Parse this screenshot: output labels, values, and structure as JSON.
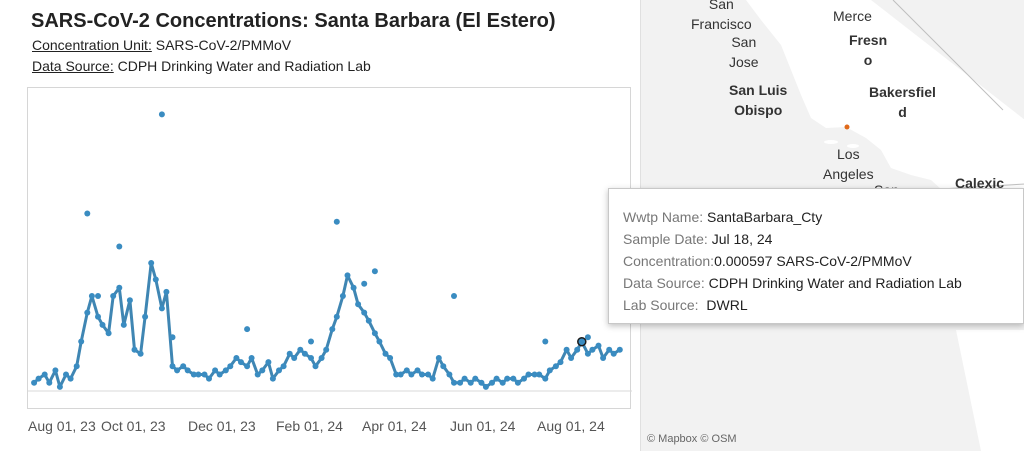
{
  "title": "SARS-CoV-2 Concentrations: Santa Barbara (El Estero)",
  "concentration_unit": {
    "label": "Concentration Unit:",
    "value": "SARS-CoV-2/PMMoV"
  },
  "data_source": {
    "label": "Data Source:",
    "value": "CDPH Drinking Water and Radiation Lab"
  },
  "chart_data": {
    "type": "scatter",
    "title": "",
    "xlabel": "",
    "ylabel": "",
    "x_ticks": [
      "Aug 01, 23",
      "Oct 01, 23",
      "Dec 01, 23",
      "Feb 01, 24",
      "Apr 01, 24",
      "Jun 01, 24",
      "Aug 01, 24"
    ],
    "x_range": [
      "2023-07-20",
      "2024-08-20"
    ],
    "y_range": [
      0,
      0.0035
    ],
    "grid": false,
    "line_color": "#3f86b3",
    "point_color": "#3a8cc1",
    "highlight": {
      "date": "2024-07-18",
      "value": 0.000597
    },
    "points": [
      [
        "2023-07-24",
        0.0001
      ],
      [
        "2023-07-27",
        0.00015
      ],
      [
        "2023-07-31",
        0.0002
      ],
      [
        "2023-08-03",
        0.0001
      ],
      [
        "2023-08-07",
        0.00025
      ],
      [
        "2023-08-10",
        5e-05
      ],
      [
        "2023-08-14",
        0.0002
      ],
      [
        "2023-08-17",
        0.00015
      ],
      [
        "2023-08-21",
        0.0003
      ],
      [
        "2023-08-24",
        0.0006
      ],
      [
        "2023-08-28",
        0.00095
      ],
      [
        "2023-08-31",
        0.00115
      ],
      [
        "2023-09-04",
        0.0009
      ],
      [
        "2023-09-07",
        0.0008
      ],
      [
        "2023-09-11",
        0.0007
      ],
      [
        "2023-09-14",
        0.00115
      ],
      [
        "2023-09-18",
        0.00125
      ],
      [
        "2023-09-21",
        0.0008
      ],
      [
        "2023-09-25",
        0.0011
      ],
      [
        "2023-09-28",
        0.0005
      ],
      [
        "2023-10-02",
        0.00045
      ],
      [
        "2023-10-05",
        0.0009
      ],
      [
        "2023-10-09",
        0.00155
      ],
      [
        "2023-10-12",
        0.00135
      ],
      [
        "2023-10-16",
        0.001
      ],
      [
        "2023-10-19",
        0.0012
      ],
      [
        "2023-10-23",
        0.0003
      ],
      [
        "2023-10-26",
        0.00025
      ],
      [
        "2023-10-30",
        0.0003
      ],
      [
        "2023-11-02",
        0.00025
      ],
      [
        "2023-11-06",
        0.0002
      ],
      [
        "2023-11-09",
        0.0002
      ],
      [
        "2023-11-13",
        0.0002
      ],
      [
        "2023-11-16",
        0.00015
      ],
      [
        "2023-11-20",
        0.00025
      ],
      [
        "2023-11-23",
        0.0002
      ],
      [
        "2023-11-27",
        0.00025
      ],
      [
        "2023-11-30",
        0.0003
      ],
      [
        "2023-12-04",
        0.0004
      ],
      [
        "2023-12-07",
        0.00035
      ],
      [
        "2023-12-11",
        0.0003
      ],
      [
        "2023-12-14",
        0.0004
      ],
      [
        "2023-12-18",
        0.0002
      ],
      [
        "2023-12-21",
        0.00025
      ],
      [
        "2023-12-25",
        0.00035
      ],
      [
        "2023-12-28",
        0.00015
      ],
      [
        "2024-01-01",
        0.00025
      ],
      [
        "2024-01-04",
        0.0003
      ],
      [
        "2024-01-08",
        0.00045
      ],
      [
        "2024-01-11",
        0.0004
      ],
      [
        "2024-01-15",
        0.0005
      ],
      [
        "2024-01-18",
        0.00045
      ],
      [
        "2024-01-22",
        0.0004
      ],
      [
        "2024-01-25",
        0.0003
      ],
      [
        "2024-01-29",
        0.0004
      ],
      [
        "2024-02-01",
        0.0005
      ],
      [
        "2024-02-05",
        0.00075
      ],
      [
        "2024-02-08",
        0.0009
      ],
      [
        "2024-02-12",
        0.00115
      ],
      [
        "2024-02-15",
        0.0014
      ],
      [
        "2024-02-19",
        0.00125
      ],
      [
        "2024-02-22",
        0.00105
      ],
      [
        "2024-02-26",
        0.00095
      ],
      [
        "2024-02-29",
        0.00085
      ],
      [
        "2024-03-04",
        0.0007
      ],
      [
        "2024-03-07",
        0.0006
      ],
      [
        "2024-03-11",
        0.00045
      ],
      [
        "2024-03-14",
        0.0004
      ],
      [
        "2024-03-18",
        0.0002
      ],
      [
        "2024-03-21",
        0.0002
      ],
      [
        "2024-03-25",
        0.00025
      ],
      [
        "2024-03-28",
        0.0002
      ],
      [
        "2024-04-01",
        0.00025
      ],
      [
        "2024-04-04",
        0.0002
      ],
      [
        "2024-04-08",
        0.0002
      ],
      [
        "2024-04-11",
        0.00015
      ],
      [
        "2024-04-15",
        0.0004
      ],
      [
        "2024-04-18",
        0.0003
      ],
      [
        "2024-04-22",
        0.0002
      ],
      [
        "2024-04-25",
        0.0001
      ],
      [
        "2024-04-29",
        0.0001
      ],
      [
        "2024-05-02",
        0.00015
      ],
      [
        "2024-05-06",
        0.0001
      ],
      [
        "2024-05-09",
        0.00015
      ],
      [
        "2024-05-13",
        0.0001
      ],
      [
        "2024-05-16",
        5e-05
      ],
      [
        "2024-05-20",
        0.0001
      ],
      [
        "2024-05-23",
        0.00015
      ],
      [
        "2024-05-27",
        0.0001
      ],
      [
        "2024-05-30",
        0.00015
      ],
      [
        "2024-06-03",
        0.00015
      ],
      [
        "2024-06-06",
        0.0001
      ],
      [
        "2024-06-10",
        0.00015
      ],
      [
        "2024-06-13",
        0.0002
      ],
      [
        "2024-06-17",
        0.0002
      ],
      [
        "2024-06-20",
        0.0002
      ],
      [
        "2024-06-24",
        0.00015
      ],
      [
        "2024-06-27",
        0.00025
      ],
      [
        "2024-07-01",
        0.0003
      ],
      [
        "2024-07-04",
        0.00035
      ],
      [
        "2024-07-08",
        0.0005
      ],
      [
        "2024-07-11",
        0.0004
      ],
      [
        "2024-07-15",
        0.0005
      ],
      [
        "2024-07-18",
        0.000597
      ],
      [
        "2024-07-22",
        0.00045
      ],
      [
        "2024-07-25",
        0.0005
      ],
      [
        "2024-07-29",
        0.00055
      ],
      [
        "2024-08-01",
        0.0004
      ],
      [
        "2024-08-05",
        0.0005
      ],
      [
        "2024-08-08",
        0.00045
      ],
      [
        "2024-08-12",
        0.0005
      ]
    ],
    "outliers": [
      [
        "2023-08-28",
        0.00215
      ],
      [
        "2023-09-04",
        0.00115
      ],
      [
        "2023-09-18",
        0.00175
      ],
      [
        "2023-10-16",
        0.00335
      ],
      [
        "2023-10-23",
        0.00065
      ],
      [
        "2023-12-11",
        0.00075
      ],
      [
        "2024-01-22",
        0.0006
      ],
      [
        "2024-02-08",
        0.00205
      ],
      [
        "2024-02-26",
        0.0013
      ],
      [
        "2024-03-04",
        0.00145
      ],
      [
        "2024-04-25",
        0.00115
      ],
      [
        "2024-06-24",
        0.0006
      ],
      [
        "2024-07-22",
        0.00065
      ]
    ]
  },
  "map": {
    "labels": {
      "san_francisco": "San\nFrancisco",
      "san_jose": "San\nJose",
      "merced": "Merce",
      "fresno": "Fresn\no",
      "san_luis_obispo": "San Luis\nObispo",
      "bakersfield": "Bakersfiel\nd",
      "los_angeles": "Los\nAngeles",
      "san_diego_partial": "San",
      "calexico": "Calexic"
    },
    "attribution": "© Mapbox  © OSM",
    "land_color": "#ffffff",
    "water_color": "#f2f2f2",
    "marker_color": "#e06a1a"
  },
  "tooltip": {
    "wwtp_name_label": "Wwtp Name:",
    "wwtp_name_value": "SantaBarbara_Cty",
    "sample_date_label": "Sample Date:",
    "sample_date_value": "Jul 18, 24",
    "concentration_label": "Concentration:",
    "concentration_value": "0.000597 SARS-CoV-2/PMMoV",
    "data_source_label": "Data Source:",
    "data_source_value": "CDPH Drinking Water and Radiation Lab",
    "lab_source_label": "Lab Source:",
    "lab_source_value": "DWRL"
  }
}
